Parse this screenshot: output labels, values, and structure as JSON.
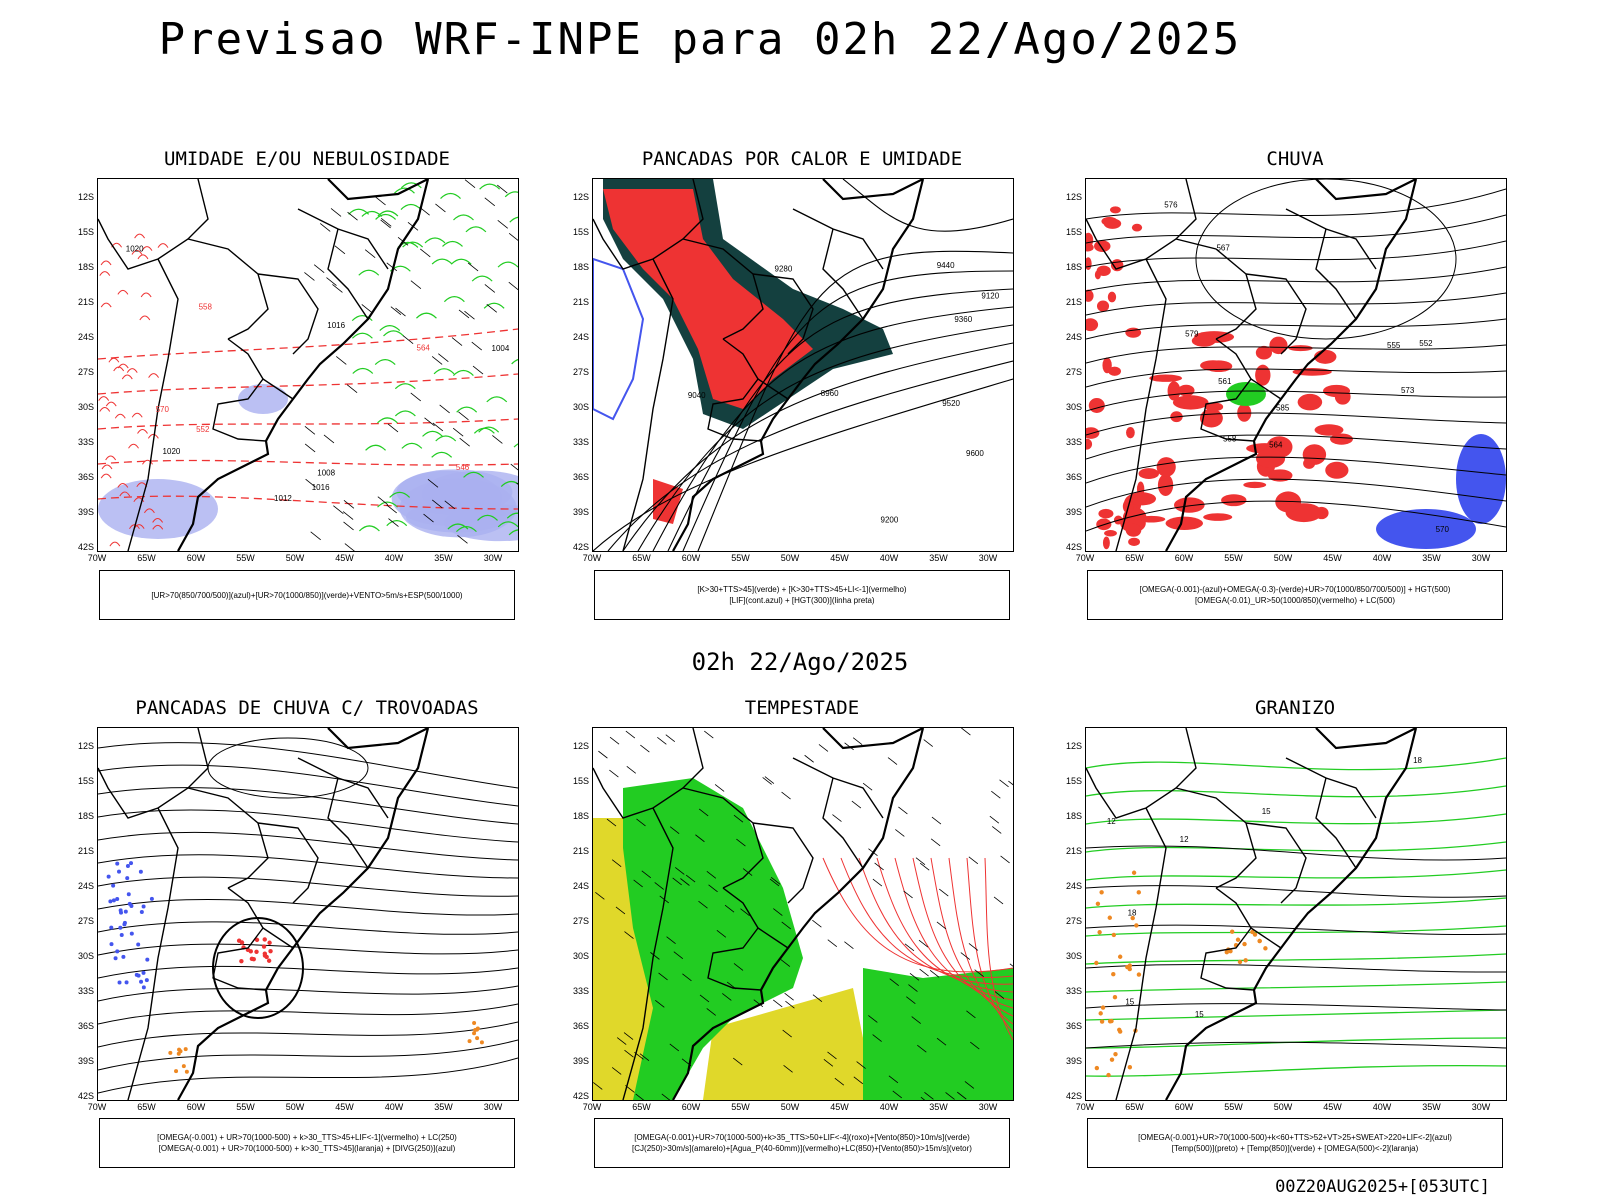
{
  "title": "Previsao WRF-INPE  para 02h 22/Ago/2025",
  "mid_time": "02h 22/Ago/2025",
  "footer": "00Z20AUG2025+[053UTC]",
  "lat_ticks": [
    "12S",
    "15S",
    "18S",
    "21S",
    "24S",
    "27S",
    "30S",
    "33S",
    "36S",
    "39S",
    "42S"
  ],
  "lon_ticks": [
    "70W",
    "65W",
    "60W",
    "55W",
    "50W",
    "45W",
    "40W",
    "35W",
    "30W"
  ],
  "colors": {
    "blue": "#4455ee",
    "green": "#22cc22",
    "red": "#ee3333",
    "darkteal": "#14403f",
    "yellow": "#e0d82a",
    "orange": "#ee8822",
    "lightblue": "#aab0f0"
  },
  "panels": [
    {
      "title": "UMIDADE E/OU NEBULOSIDADE",
      "legend": [
        "[UR>70(850/700/500)](azul)+[UR>70(1000/850)](verde)+VENTO>5m/s+ESP(500/1000)"
      ],
      "labels": [
        "1012",
        "1008",
        "1016",
        "1020",
        "1004",
        "1020",
        "1016",
        "570",
        "564",
        "558",
        "552",
        "546"
      ]
    },
    {
      "title": "PANCADAS POR CALOR E UMIDADE",
      "legend": [
        "[K>30+TTS>45](verde) + [K>30+TTS>45+LI<-1](vermelho)",
        "[LIF](cont.azul) + [HGT(300)](linha preta)"
      ],
      "labels": [
        "9600",
        "9520",
        "9440",
        "9360",
        "9280",
        "9200",
        "9120",
        "9040",
        "8960"
      ]
    },
    {
      "title": "CHUVA",
      "legend": [
        "[OMEGA(-0.001)-(azul)+OMEGA(-0.3)-(verde)+UR>70(1000/850/700/500)] + HGT(500)",
        "[OMEGA(-0.01)_UR>50(1000/850)(vermelho) + LC(500)"
      ],
      "labels": [
        "585",
        "579",
        "576",
        "573",
        "570",
        "567",
        "564",
        "561",
        "558",
        "555",
        "552"
      ]
    },
    {
      "title": "PANCADAS DE CHUVA C/ TROVOADAS",
      "legend": [
        "[OMEGA(-0.001) + UR>70(1000-500) + k>30_TTS>45+LIF<-1](vermelho) + LC(250)",
        "[OMEGA(-0.001) + UR>70(1000-500) + k>30_TTS>45](laranja) + [DIVG(250)](azul)"
      ],
      "labels": []
    },
    {
      "title": "TEMPESTADE",
      "legend": [
        "[OMEGA(-0.001)+UR>70(1000-500)+k>35_TTS>50+LIF<-4](roxo)+[Vento(850)>10m/s](verde)",
        "[CJ(250)>30m/s](amarelo)+[Agua_P(40-60mm)](vermelho)+LC(850)+[Vento(850)>15m/s](vetor)"
      ],
      "labels": []
    },
    {
      "title": "GRANIZO",
      "legend": [
        "[OMEGA(-0.001)+UR>70(1000-500)+k<60+TTS>52+VT>25+SWEAT>220+LIF<-2](azul)",
        "[Temp(500)](preto) + [Temp(850)](verde) + [OMEGA(500)<-2](laranja)"
      ],
      "labels": [
        "12",
        "15",
        "18",
        "15",
        "12",
        "15",
        "18"
      ]
    }
  ]
}
